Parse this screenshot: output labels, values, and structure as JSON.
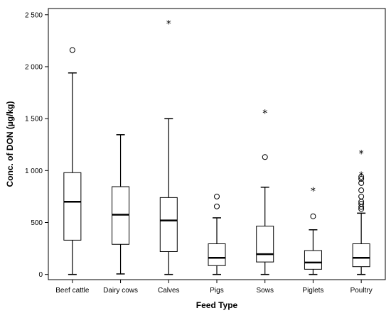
{
  "chart_data": {
    "type": "boxplot",
    "title": "",
    "xlabel": "Feed Type",
    "ylabel": "Conc. of DON (µg/kg)",
    "ylim": [
      -50,
      2560
    ],
    "yticks": [
      0,
      500,
      1000,
      1500,
      2000,
      2500
    ],
    "ytick_labels": [
      "0",
      "500",
      "1 000",
      "1 500",
      "2 000",
      "2 500"
    ],
    "grid": false,
    "legend": "none",
    "categories": [
      "Beef cattle",
      "Dairy cows",
      "Calves",
      "Pigs",
      "Sows",
      "Piglets",
      "Poultry"
    ],
    "boxes": [
      {
        "whisker_low": 0,
        "q1": 330,
        "median": 700,
        "q3": 980,
        "whisker_high": 1940,
        "outliers": [
          2160
        ],
        "extremes": []
      },
      {
        "whisker_low": 5,
        "q1": 290,
        "median": 575,
        "q3": 845,
        "whisker_high": 1345,
        "outliers": [],
        "extremes": []
      },
      {
        "whisker_low": 0,
        "q1": 220,
        "median": 520,
        "q3": 740,
        "whisker_high": 1500,
        "outliers": [],
        "extremes": [
          2420
        ]
      },
      {
        "whisker_low": 0,
        "q1": 85,
        "median": 160,
        "q3": 295,
        "whisker_high": 545,
        "outliers": [
          655,
          750
        ],
        "extremes": []
      },
      {
        "whisker_low": 0,
        "q1": 120,
        "median": 195,
        "q3": 465,
        "whisker_high": 840,
        "outliers": [
          1130
        ],
        "extremes": [
          1560
        ]
      },
      {
        "whisker_low": 0,
        "q1": 50,
        "median": 115,
        "q3": 230,
        "whisker_high": 430,
        "outliers": [
          560
        ],
        "extremes": [
          810
        ]
      },
      {
        "whisker_low": 0,
        "q1": 75,
        "median": 160,
        "q3": 295,
        "whisker_high": 590,
        "outliers": [
          630,
          650,
          680,
          700,
          750,
          810,
          880,
          920,
          940
        ],
        "extremes": [
          960,
          1170
        ]
      }
    ]
  }
}
